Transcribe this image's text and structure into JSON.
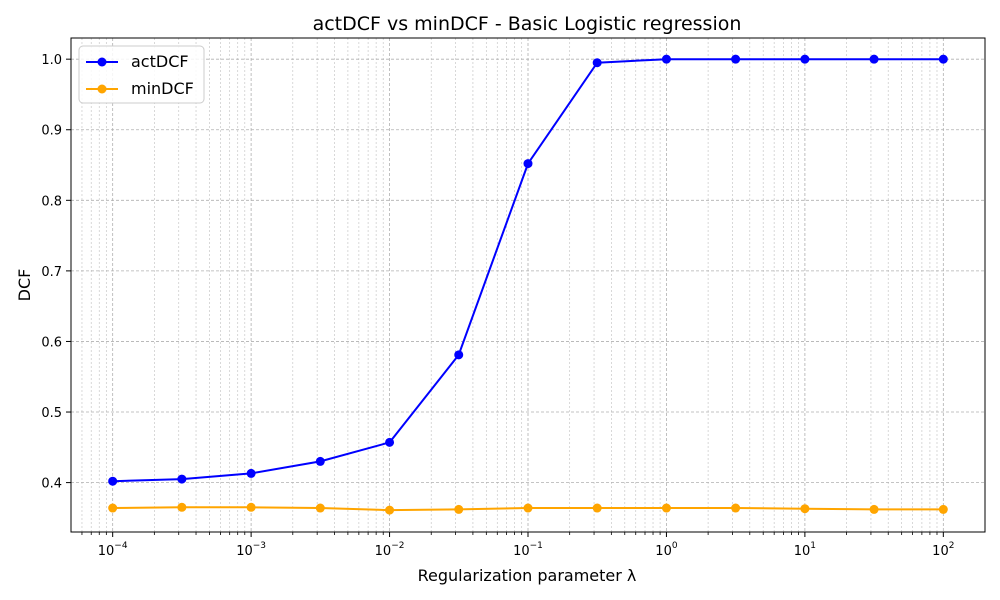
{
  "chart_data": {
    "type": "line",
    "title": "actDCF vs minDCF - Basic Logistic regression",
    "xlabel": "Regularization parameter λ",
    "ylabel": "DCF",
    "xscale": "log",
    "xlim": [
      5e-05,
      200
    ],
    "ylim": [
      0.33,
      1.03
    ],
    "grid": true,
    "legend_position": "top-left",
    "x": [
      0.0001,
      0.000316,
      0.001,
      0.00316,
      0.01,
      0.0316,
      0.1,
      0.316,
      1,
      3.16,
      10,
      31.6,
      100
    ],
    "series": [
      {
        "name": "actDCF",
        "color": "#0000ff",
        "values": [
          0.402,
          0.405,
          0.413,
          0.43,
          0.457,
          0.581,
          0.852,
          0.995,
          1.0,
          1.0,
          1.0,
          1.0,
          1.0
        ]
      },
      {
        "name": "minDCF",
        "color": "#ffa500",
        "values": [
          0.364,
          0.365,
          0.365,
          0.364,
          0.361,
          0.362,
          0.364,
          0.364,
          0.364,
          0.364,
          0.363,
          0.362,
          0.362
        ]
      }
    ],
    "xticks": [
      {
        "value": 0.0001,
        "base": "10",
        "exp": "−4"
      },
      {
        "value": 0.001,
        "base": "10",
        "exp": "−3"
      },
      {
        "value": 0.01,
        "base": "10",
        "exp": "−2"
      },
      {
        "value": 0.1,
        "base": "10",
        "exp": "−1"
      },
      {
        "value": 1,
        "base": "10",
        "exp": "0"
      },
      {
        "value": 10,
        "base": "10",
        "exp": "1"
      },
      {
        "value": 100,
        "base": "10",
        "exp": "2"
      }
    ],
    "yticks": [
      {
        "value": 0.4,
        "label": "0.4"
      },
      {
        "value": 0.5,
        "label": "0.5"
      },
      {
        "value": 0.6,
        "label": "0.6"
      },
      {
        "value": 0.7,
        "label": "0.7"
      },
      {
        "value": 0.8,
        "label": "0.8"
      },
      {
        "value": 0.9,
        "label": "0.9"
      },
      {
        "value": 1.0,
        "label": "1.0"
      }
    ]
  }
}
